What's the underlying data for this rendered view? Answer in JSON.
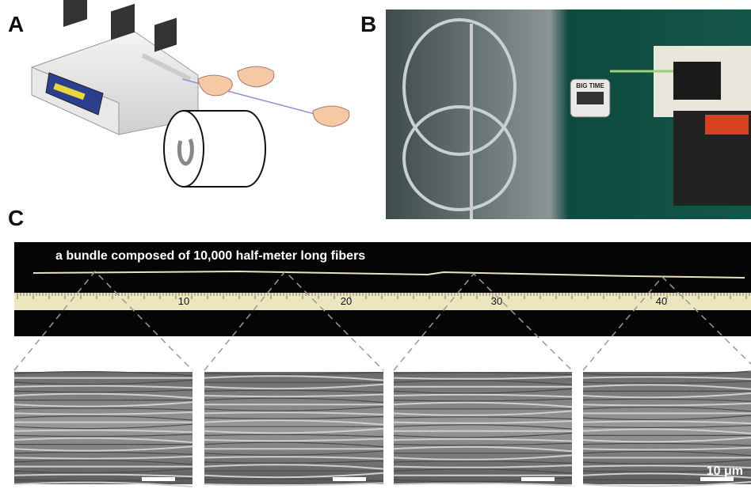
{
  "panels": {
    "a": {
      "label": "A"
    },
    "b": {
      "label": "B",
      "timer_text": "BIG TIME"
    },
    "c": {
      "label": "C",
      "caption": "a bundle composed of 10,000 half-meter long fibers",
      "ruler_labels": [
        "10",
        "20",
        "30",
        "40"
      ],
      "scale_bar": "10 μm"
    }
  }
}
